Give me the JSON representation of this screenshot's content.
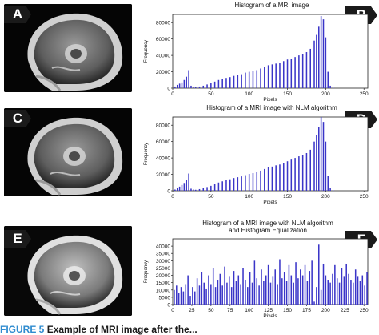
{
  "panels": {
    "a": {
      "label": "A"
    },
    "b": {
      "label": "B"
    },
    "c": {
      "label": "C"
    },
    "d": {
      "label": "D"
    },
    "e": {
      "label": "E"
    },
    "f": {
      "label": "F"
    }
  },
  "caption": {
    "figure": "FIGURE 5",
    "text": "Example of MRI image after the..."
  },
  "colors": {
    "bar": "#3a35c8",
    "dark": "#111111"
  },
  "chart_data": [
    {
      "type": "bar",
      "title": "Histogram of a MRI image",
      "xlabel": "Pixels",
      "ylabel": "Frequency",
      "xlim": [
        0,
        255
      ],
      "ylim": [
        0,
        90000
      ],
      "xticks": [
        0,
        50,
        100,
        150,
        200,
        250
      ],
      "yticks": [
        0,
        20000,
        40000,
        60000,
        80000
      ],
      "series": [
        {
          "x": [
            0,
            3,
            6,
            9,
            12,
            15,
            18,
            21,
            24,
            27,
            30,
            35,
            40,
            45,
            50,
            55,
            60,
            65,
            70,
            75,
            80,
            85,
            90,
            95,
            100,
            105,
            110,
            115,
            120,
            125,
            130,
            135,
            140,
            145,
            150,
            155,
            160,
            165,
            170,
            175,
            180,
            185,
            188,
            191,
            194,
            197,
            200,
            203,
            206,
            210,
            220,
            230,
            240,
            250
          ],
          "values": [
            0,
            2000,
            4000,
            5500,
            7000,
            10000,
            14000,
            22000,
            3000,
            1500,
            1200,
            2000,
            3000,
            4500,
            6000,
            8000,
            10000,
            11000,
            12500,
            13500,
            15000,
            16500,
            17000,
            19000,
            20000,
            21000,
            22000,
            24000,
            26000,
            28000,
            29000,
            30000,
            31000,
            33000,
            35000,
            36000,
            38000,
            40000,
            42000,
            44000,
            48000,
            58000,
            65000,
            75000,
            88000,
            84000,
            62000,
            20000,
            3000,
            500,
            0,
            0,
            0,
            0
          ]
        }
      ]
    },
    {
      "type": "bar",
      "title": "Histogram of a MRI image with NLM algorithm",
      "xlabel": "Pixels",
      "ylabel": "Frequency",
      "xlim": [
        0,
        255
      ],
      "ylim": [
        0,
        90000
      ],
      "xticks": [
        0,
        50,
        100,
        150,
        200,
        250
      ],
      "yticks": [
        0,
        20000,
        40000,
        60000,
        80000
      ],
      "series": [
        {
          "x": [
            0,
            3,
            6,
            9,
            12,
            15,
            18,
            21,
            24,
            27,
            30,
            35,
            40,
            45,
            50,
            55,
            60,
            65,
            70,
            75,
            80,
            85,
            90,
            95,
            100,
            105,
            110,
            115,
            120,
            125,
            130,
            135,
            140,
            145,
            150,
            155,
            160,
            165,
            170,
            175,
            180,
            185,
            188,
            191,
            194,
            197,
            200,
            203,
            206,
            210,
            220,
            230,
            240,
            250
          ],
          "values": [
            0,
            1500,
            3500,
            5000,
            7000,
            9500,
            13000,
            21000,
            2500,
            1500,
            1200,
            2000,
            3000,
            4500,
            6000,
            8000,
            10000,
            11500,
            13000,
            14000,
            15500,
            16500,
            17500,
            19000,
            20500,
            21500,
            22500,
            24500,
            26500,
            28500,
            29500,
            31000,
            32000,
            34000,
            36000,
            38000,
            40000,
            42000,
            44000,
            46000,
            50000,
            60000,
            68000,
            78000,
            90000,
            84000,
            60000,
            18000,
            3000,
            500,
            0,
            0,
            0,
            0
          ]
        }
      ]
    },
    {
      "type": "bar",
      "title": "Histogram of a MRI image with NLM algorithm",
      "subtitle": "and Histogram Equalization",
      "xlabel": "Pixels",
      "ylabel": "Frequency",
      "xlim": [
        0,
        255
      ],
      "ylim": [
        0,
        45000
      ],
      "xticks": [
        0,
        25,
        50,
        75,
        100,
        125,
        150,
        175,
        200,
        225,
        250
      ],
      "yticks": [
        0,
        5000,
        10000,
        15000,
        20000,
        25000,
        30000,
        35000,
        40000
      ],
      "series": [
        {
          "x": [
            2,
            5,
            8,
            11,
            14,
            17,
            20,
            23,
            26,
            29,
            32,
            35,
            38,
            41,
            44,
            47,
            50,
            53,
            56,
            59,
            62,
            65,
            68,
            71,
            74,
            77,
            80,
            83,
            86,
            89,
            92,
            95,
            98,
            101,
            104,
            107,
            110,
            113,
            116,
            119,
            122,
            125,
            128,
            131,
            134,
            137,
            140,
            143,
            146,
            149,
            152,
            155,
            158,
            161,
            164,
            167,
            170,
            173,
            176,
            179,
            182,
            185,
            188,
            191,
            194,
            197,
            200,
            203,
            206,
            209,
            212,
            215,
            218,
            221,
            224,
            227,
            230,
            233,
            236,
            239,
            242,
            245,
            248,
            251,
            254
          ],
          "values": [
            10000,
            13000,
            8000,
            12000,
            9000,
            14000,
            20000,
            6000,
            12000,
            9000,
            18000,
            13000,
            22000,
            15000,
            11000,
            20000,
            14000,
            25000,
            12000,
            17000,
            21000,
            13000,
            26000,
            15000,
            19000,
            12000,
            23000,
            16000,
            20000,
            14000,
            25000,
            17000,
            12000,
            22000,
            15000,
            30000,
            18000,
            13000,
            24000,
            16000,
            20000,
            27000,
            15000,
            19000,
            24000,
            14000,
            31000,
            18000,
            22000,
            16000,
            27000,
            20000,
            15000,
            29000,
            18000,
            24000,
            20000,
            27000,
            16000,
            23000,
            30000,
            2000,
            12000,
            41000,
            10000,
            28000,
            20000,
            17000,
            15000,
            21000,
            27000,
            18000,
            15000,
            25000,
            19000,
            28000,
            21000,
            17000,
            15000,
            24000,
            19000,
            16000,
            20000,
            13000,
            22000
          ]
        }
      ]
    }
  ]
}
